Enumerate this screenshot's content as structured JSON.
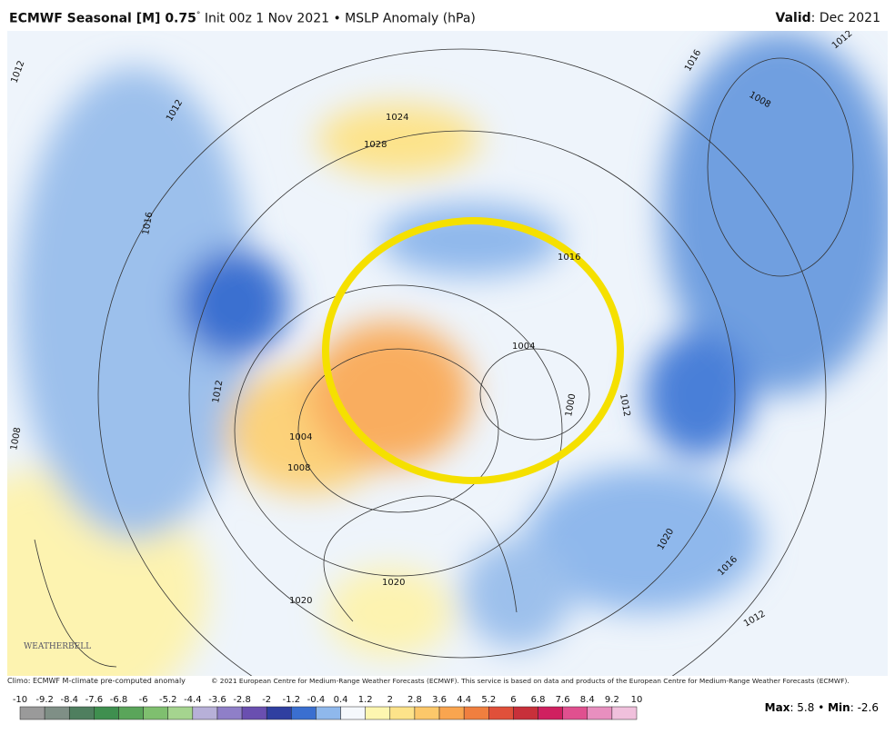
{
  "header": {
    "title": "ECMWF Seasonal [M] 0.75",
    "degree": "°",
    "subtitle": "Init 00z 1 Nov 2021 • MSLP Anomaly (hPa)",
    "valid_label": "Valid",
    "valid_value": ": Dec 2021"
  },
  "map": {
    "contour_labels": [
      "1012",
      "1012",
      "1016",
      "1012",
      "1008",
      "1004",
      "1008",
      "1020",
      "1024",
      "1028",
      "1016",
      "1004",
      "1000",
      "1012",
      "1020",
      "1016",
      "1012",
      "1008",
      "1016",
      "1012",
      "1020"
    ],
    "logo": "WEATHERBELL"
  },
  "footer": {
    "climo": "Climo: ECMWF M-climate pre-computed anomaly",
    "copyright": "© 2021 European Centre for Medium-Range Weather Forecasts (ECMWF). This service is based on data and products of the European Centre for Medium-Range Weather Forecasts (ECMWF)."
  },
  "colorbar": {
    "ticks": [
      -10,
      -9.2,
      -8.4,
      -7.6,
      -6.8,
      -6,
      -5.2,
      -4.4,
      -3.6,
      -2.8,
      -2,
      -1.2,
      -0.4,
      0.4,
      1.2,
      2,
      2.8,
      3.6,
      4.4,
      5.2,
      6,
      6.8,
      7.6,
      8.4,
      9.2,
      10
    ],
    "colors": [
      "#9a9a9a",
      "#7f8f86",
      "#4f7f5f",
      "#3f8f4f",
      "#5aa55a",
      "#7fbf6f",
      "#a5d48f",
      "#b7b0d8",
      "#8f7fc8",
      "#6a4fb0",
      "#2f3fa0",
      "#3a6fd0",
      "#8fb8ec",
      "#f5f8fc",
      "#fdf6b0",
      "#fde38a",
      "#fcc86a",
      "#f9a54f",
      "#f07f3f",
      "#e0503a",
      "#c8303a",
      "#d02060",
      "#e0508f",
      "#e88fbf",
      "#f0c0dc"
    ]
  },
  "stats": {
    "max_label": "Max",
    "max_value": 5.8,
    "min_label": "Min",
    "min_value": -2.6
  }
}
